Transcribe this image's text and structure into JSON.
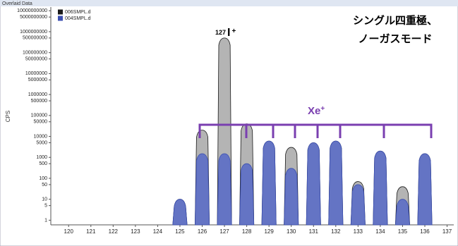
{
  "window_title": "Overlaid Data",
  "chart_data": {
    "type": "spectrum",
    "y_label": "CPS",
    "annotation": [
      "シングル四重極、",
      "ノーガスモード"
    ],
    "iodine_label": {
      "mass": "127",
      "element": "I",
      "charge": "+"
    },
    "xenon_label": {
      "element": "Xe",
      "charge": "+"
    },
    "log_y": true,
    "x": [
      125,
      126,
      127,
      128,
      129,
      130,
      131,
      132,
      133,
      134,
      135,
      136
    ],
    "series": [
      {
        "name": "006SMPL.d",
        "color": "#1a1a1a",
        "fill": "#b4b4b4",
        "values": [
          10,
          20000,
          500000000,
          40000,
          6000,
          3000,
          5000,
          6000,
          70,
          2000,
          40,
          1500
        ]
      },
      {
        "name": "004SMPL.d",
        "color": "#3b4fb0",
        "fill": "#6474c4",
        "values": [
          10,
          1500,
          1500,
          500,
          6000,
          300,
          5000,
          6000,
          50,
          2000,
          10,
          1500
        ]
      }
    ],
    "xlim": [
      119.2,
      137.3
    ],
    "xticks": [
      120,
      121,
      122,
      123,
      124,
      125,
      126,
      127,
      128,
      129,
      130,
      131,
      132,
      133,
      134,
      135,
      136,
      137
    ],
    "ylim": [
      0.6,
      15000000000
    ],
    "yticks": [
      1,
      5,
      10,
      50,
      100,
      500,
      1000,
      5000,
      10000,
      50000,
      100000,
      500000,
      1000000,
      5000000,
      10000000,
      50000000,
      100000000,
      500000000,
      1000000000,
      5000000000,
      10000000000
    ]
  }
}
